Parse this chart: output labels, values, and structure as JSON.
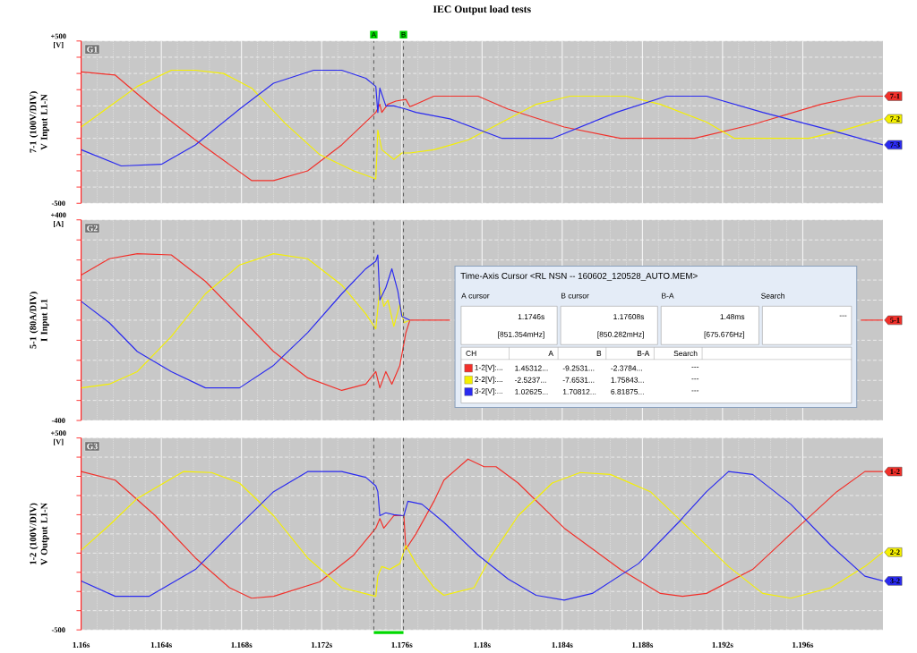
{
  "chart_data": [
    {
      "type": "line",
      "title": "IEC Output load tests",
      "ylabel": "7-1 (100V/DIV) V Input L1-N",
      "xlim": [
        1.16,
        1.2
      ],
      "xticks": [
        {
          "value": 1.16,
          "label": null
        },
        {
          "value": 1.164,
          "label": null
        },
        {
          "value": 1.168,
          "label": null
        },
        {
          "value": 1.172,
          "label": null
        },
        {
          "value": 1.176,
          "label": null
        },
        {
          "value": 1.18,
          "label": null
        },
        {
          "value": 1.184,
          "label": null
        },
        {
          "value": 1.188,
          "label": null
        },
        {
          "value": 1.192,
          "label": null
        },
        {
          "value": 1.196,
          "label": null
        }
      ],
      "ylim": [
        -500,
        500
      ],
      "yticks": [
        {
          "value": 500,
          "label": "+500 [V]"
        },
        {
          "value": 400,
          "label": null
        },
        {
          "value": 300,
          "label": null
        },
        {
          "value": 200,
          "label": null
        },
        {
          "value": 100,
          "label": null
        },
        {
          "value": 0,
          "label": null
        },
        {
          "value": -100,
          "label": null
        },
        {
          "value": -200,
          "label": null
        },
        {
          "value": -300,
          "label": null
        },
        {
          "value": -400,
          "label": null
        },
        {
          "value": -500,
          "label": "-500"
        }
      ],
      "tick_labels": "y",
      "grid": true,
      "ref_lines": [
        {
          "axis": "x",
          "value": 1.1746,
          "label": "A",
          "color": "#505050",
          "line_style": "dashed"
        },
        {
          "axis": "x",
          "value": 1.17608,
          "label": "B",
          "color": "#505050",
          "line_style": "dashed"
        }
      ],
      "annotations": [
        "G1"
      ],
      "series": [
        {
          "name": "7-1",
          "color": "#f2302a",
          "x": [
            1.16,
            1.1617,
            1.1637,
            1.1657,
            1.1685,
            1.1696,
            1.1713,
            1.173,
            1.1747,
            1.1749,
            1.175,
            1.1753,
            1.1757,
            1.1762,
            1.1764,
            1.1767,
            1.1776,
            1.1798,
            1.1813,
            1.1841,
            1.1869,
            1.1884,
            1.1906,
            1.1935,
            1.1969,
            1.1988,
            1.2
          ],
          "values": [
            310,
            290,
            80,
            -110,
            -360,
            -360,
            -300,
            -140,
            60,
            110,
            60,
            110,
            130,
            140,
            95,
            110,
            160,
            160,
            80,
            -30,
            -100,
            -100,
            -100,
            -15,
            110,
            160,
            160
          ]
        },
        {
          "name": "7-2",
          "color": "#f5f000",
          "x": [
            1.16,
            1.1614,
            1.1628,
            1.1645,
            1.1657,
            1.1671,
            1.1685,
            1.1702,
            1.1719,
            1.1736,
            1.1747,
            1.1748,
            1.175,
            1.1756,
            1.176,
            1.1764,
            1.1776,
            1.1793,
            1.181,
            1.1827,
            1.1844,
            1.1872,
            1.1889,
            1.1912,
            1.1926,
            1.1963,
            1.198,
            1.2
          ],
          "values": [
            -30,
            95,
            220,
            320,
            320,
            300,
            210,
            -10,
            -200,
            -300,
            -350,
            -50,
            -170,
            -230,
            -190,
            -190,
            -170,
            -110,
            0,
            110,
            160,
            160,
            110,
            0,
            -100,
            -100,
            -50,
            20
          ]
        },
        {
          "name": "7-3",
          "color": "#2a2af0",
          "x": [
            1.16,
            1.162,
            1.164,
            1.1657,
            1.1679,
            1.1696,
            1.1716,
            1.173,
            1.1742,
            1.1747,
            1.1748,
            1.1749,
            1.1752,
            1.1756,
            1.1762,
            1.1767,
            1.1784,
            1.181,
            1.1835,
            1.1867,
            1.1892,
            1.1912,
            1.194,
            1.1974,
            1.2
          ],
          "values": [
            -170,
            -270,
            -260,
            -140,
            80,
            240,
            320,
            320,
            270,
            220,
            60,
            210,
            100,
            100,
            80,
            60,
            20,
            -100,
            -100,
            60,
            160,
            160,
            60,
            -50,
            -140
          ]
        }
      ]
    },
    {
      "type": "line",
      "ylabel": "5-1 (80A/DIV) I Input L1",
      "xlim": [
        1.16,
        1.2
      ],
      "xticks": [
        {
          "value": 1.16,
          "label": null
        },
        {
          "value": 1.164,
          "label": null
        },
        {
          "value": 1.168,
          "label": null
        },
        {
          "value": 1.172,
          "label": null
        },
        {
          "value": 1.176,
          "label": null
        },
        {
          "value": 1.18,
          "label": null
        },
        {
          "value": 1.184,
          "label": null
        },
        {
          "value": 1.188,
          "label": null
        },
        {
          "value": 1.192,
          "label": null
        },
        {
          "value": 1.196,
          "label": null
        }
      ],
      "ylim": [
        -400,
        400
      ],
      "yticks": [
        {
          "value": 400,
          "label": "+400 [A]"
        },
        {
          "value": 320,
          "label": null
        },
        {
          "value": 240,
          "label": null
        },
        {
          "value": 160,
          "label": null
        },
        {
          "value": 80,
          "label": null
        },
        {
          "value": 0,
          "label": null
        },
        {
          "value": -80,
          "label": null
        },
        {
          "value": -160,
          "label": null
        },
        {
          "value": -240,
          "label": null
        },
        {
          "value": -320,
          "label": null
        },
        {
          "value": -400,
          "label": "-400"
        }
      ],
      "tick_labels": "y",
      "grid": true,
      "ref_lines": [
        {
          "axis": "x",
          "value": 1.1746,
          "color": "#505050",
          "line_style": "dashed"
        },
        {
          "axis": "x",
          "value": 1.17608,
          "color": "#505050",
          "line_style": "dashed"
        }
      ],
      "annotations": [
        "G2"
      ],
      "series": [
        {
          "name": "5-1",
          "color": "#f2302a",
          "x": [
            1.16,
            1.1614,
            1.1628,
            1.1645,
            1.1662,
            1.1679,
            1.1696,
            1.1713,
            1.173,
            1.1742,
            1.1747,
            1.1749,
            1.1752,
            1.1755,
            1.1759,
            1.1762,
            1.1764,
            1.1784,
            1.188,
            1.1989,
            1.2
          ],
          "values": [
            180,
            245,
            265,
            260,
            155,
            15,
            -125,
            -230,
            -280,
            -255,
            -205,
            -270,
            -205,
            -255,
            -180,
            -50,
            0,
            0,
            null,
            0,
            0
          ]
        },
        {
          "color": "#f5f000",
          "x": [
            1.16,
            1.1614,
            1.1628,
            1.1645,
            1.1662,
            1.1679,
            1.1696,
            1.1713,
            1.173,
            1.1742,
            1.1747,
            1.1749,
            1.1751,
            1.1753,
            1.1756,
            1.1759,
            1.1761,
            1.1764
          ],
          "values": [
            -270,
            -255,
            -205,
            -65,
            105,
            220,
            265,
            245,
            140,
            25,
            -35,
            130,
            55,
            80,
            -25,
            65,
            -10,
            0
          ]
        },
        {
          "color": "#2a2af0",
          "x": [
            1.16,
            1.1614,
            1.1628,
            1.1645,
            1.1662,
            1.1679,
            1.1696,
            1.1713,
            1.173,
            1.1742,
            1.1747,
            1.1748,
            1.1749,
            1.1752,
            1.1755,
            1.1758,
            1.176,
            1.1764
          ],
          "values": [
            75,
            -10,
            -125,
            -205,
            -270,
            -270,
            -180,
            -50,
            105,
            205,
            235,
            260,
            80,
            130,
            205,
            115,
            15,
            0
          ]
        }
      ]
    },
    {
      "type": "line",
      "ylabel": "1-2 (100V/DIV) V Output L1-N",
      "xlim": [
        1.16,
        1.2
      ],
      "xticks": [
        {
          "value": 1.16,
          "label": "1.16s"
        },
        {
          "value": 1.164,
          "label": "1.164s"
        },
        {
          "value": 1.168,
          "label": "1.168s"
        },
        {
          "value": 1.172,
          "label": "1.172s"
        },
        {
          "value": 1.176,
          "label": "1.176s"
        },
        {
          "value": 1.18,
          "label": "1.18s"
        },
        {
          "value": 1.184,
          "label": "1.184s"
        },
        {
          "value": 1.188,
          "label": "1.188s"
        },
        {
          "value": 1.192,
          "label": "1.192s"
        },
        {
          "value": 1.196,
          "label": "1.196s"
        }
      ],
      "ylim": [
        -500,
        500
      ],
      "yticks": [
        {
          "value": 500,
          "label": "+500 [V]"
        },
        {
          "value": 400,
          "label": null
        },
        {
          "value": 300,
          "label": null
        },
        {
          "value": 200,
          "label": null
        },
        {
          "value": 100,
          "label": null
        },
        {
          "value": 0,
          "label": null
        },
        {
          "value": -100,
          "label": null
        },
        {
          "value": -200,
          "label": null
        },
        {
          "value": -300,
          "label": null
        },
        {
          "value": -400,
          "label": null
        },
        {
          "value": -500,
          "label": "-500"
        }
      ],
      "grid": true,
      "ref_lines": [
        {
          "axis": "x",
          "value": 1.1746,
          "color": "#505050",
          "line_style": "dashed"
        },
        {
          "axis": "x",
          "value": 1.17608,
          "color": "#505050",
          "line_style": "dashed"
        }
      ],
      "annotations": [
        "G3"
      ],
      "series": [
        {
          "name": "1-2",
          "color": "#f2302a",
          "x": [
            1.16,
            1.1617,
            1.1637,
            1.1657,
            1.1674,
            1.1685,
            1.1696,
            1.1719,
            1.1736,
            1.1747,
            1.1749,
            1.1751,
            1.1756,
            1.1761,
            1.1762,
            1.1767,
            1.1776,
            1.1781,
            1.1793,
            1.1801,
            1.1807,
            1.1818,
            1.1841,
            1.1869,
            1.1889,
            1.19,
            1.1912,
            1.1935,
            1.1954,
            1.1977,
            1.1991,
            1.2
          ],
          "values": [
            325,
            280,
            95,
            -125,
            -280,
            -335,
            -325,
            -250,
            -110,
            30,
            80,
            30,
            95,
            95,
            -80,
            0,
            170,
            280,
            390,
            350,
            350,
            265,
            30,
            -185,
            -310,
            -325,
            -310,
            -185,
            0,
            220,
            325,
            325
          ]
        },
        {
          "name": "2-2",
          "color": "#f5f000",
          "x": [
            1.16,
            1.1614,
            1.1628,
            1.1651,
            1.1665,
            1.1679,
            1.1696,
            1.1713,
            1.173,
            1.1747,
            1.1748,
            1.175,
            1.1754,
            1.1759,
            1.1762,
            1.1767,
            1.1776,
            1.1781,
            1.1796,
            1.1804,
            1.1818,
            1.1835,
            1.1849,
            1.1864,
            1.1884,
            1.1903,
            1.1923,
            1.194,
            1.1954,
            1.1974,
            1.1991,
            1.2
          ],
          "values": [
            -85,
            45,
            185,
            325,
            320,
            265,
            95,
            -125,
            -280,
            -325,
            -220,
            -170,
            -185,
            -155,
            -60,
            -155,
            -280,
            -320,
            -280,
            -125,
            95,
            265,
            320,
            310,
            220,
            30,
            -170,
            -310,
            -335,
            -280,
            -170,
            -95
          ]
        },
        {
          "name": "3-2",
          "color": "#2a2af0",
          "x": [
            1.16,
            1.1617,
            1.1634,
            1.1657,
            1.1676,
            1.1696,
            1.1713,
            1.173,
            1.1742,
            1.1747,
            1.1748,
            1.1749,
            1.1752,
            1.1756,
            1.1761,
            1.1763,
            1.177,
            1.1781,
            1.1798,
            1.1813,
            1.1827,
            1.1841,
            1.1855,
            1.1878,
            1.1898,
            1.1912,
            1.1923,
            1.1935,
            1.1954,
            1.1974,
            1.1991,
            1.2
          ],
          "values": [
            -245,
            -325,
            -325,
            -185,
            15,
            220,
            325,
            325,
            295,
            250,
            220,
            95,
            110,
            100,
            95,
            170,
            155,
            60,
            -110,
            -235,
            -320,
            -345,
            -310,
            -155,
            60,
            220,
            325,
            310,
            155,
            -60,
            -220,
            -245
          ]
        }
      ]
    },
    {
      "type": "other",
      "annotations": [
        "Time-Axis Cursor <RL NSN -- 160602_120528_AUTO.MEM>",
        "A cursor",
        "B cursor",
        "B-A",
        "Search",
        "1.1746s",
        "1.17608s",
        "1.48ms",
        "[851.354mHz]",
        "[850.282mHz]",
        "[675.676Hz]",
        "---",
        "CH",
        "A",
        "B",
        "B-A",
        "Search",
        "1-2[V]:...",
        "1.45312...",
        "-9.2531...",
        "-2.3784...",
        "---",
        "2-2[V]:...",
        "-2.5237...",
        "-7.6531...",
        "1.75843...",
        "---",
        "3-2[V]:...",
        "1.02625...",
        "1.70812...",
        "6.81875...",
        "---"
      ]
    }
  ]
}
